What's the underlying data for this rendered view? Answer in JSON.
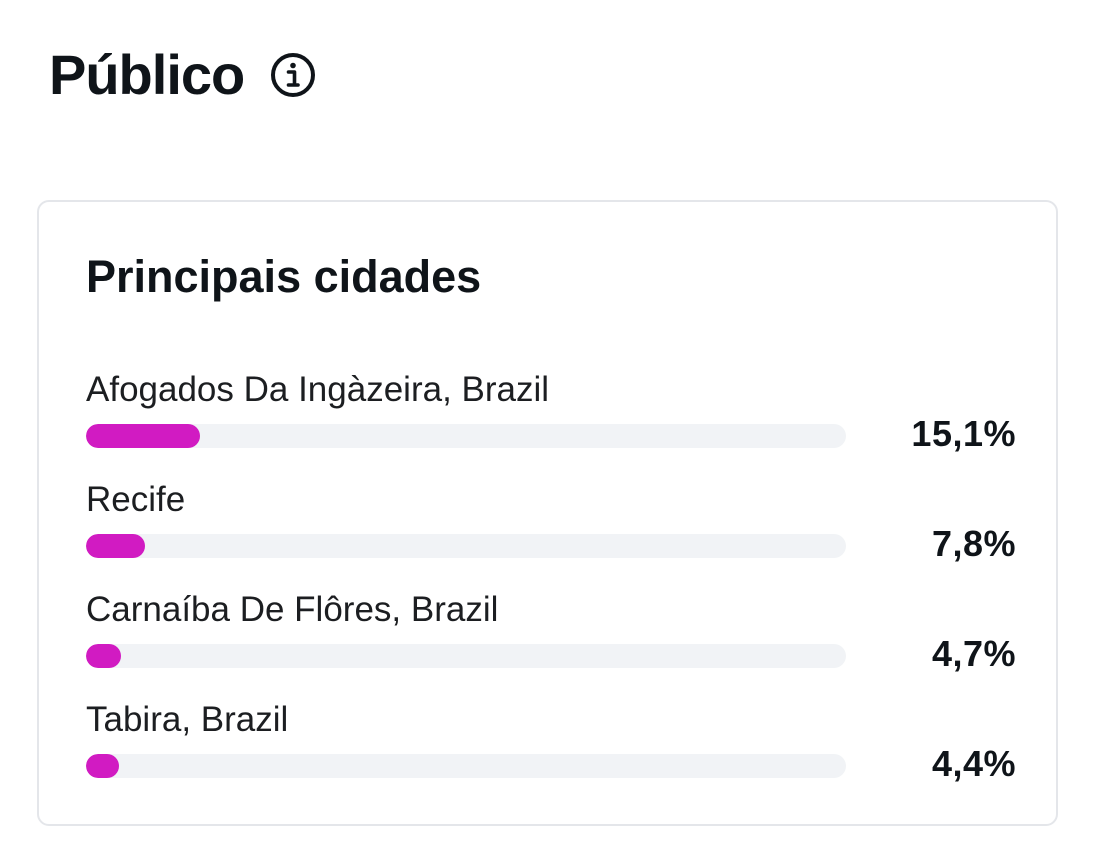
{
  "header": {
    "title": "Público",
    "info_icon": "info-circle-icon"
  },
  "card": {
    "title": "Principais cidades",
    "bar_color": "#d11bc2",
    "track_color": "#f1f3f6",
    "cities": [
      {
        "name": "Afogados Da Ingàzeira, Brazil",
        "percent_label": "15,1%",
        "percent": 15.1
      },
      {
        "name": "Recife",
        "percent_label": "7,8%",
        "percent": 7.8
      },
      {
        "name": "Carnaíba De Flôres, Brazil",
        "percent_label": "4,7%",
        "percent": 4.7
      },
      {
        "name": "Tabira, Brazil",
        "percent_label": "4,4%",
        "percent": 4.4
      }
    ]
  }
}
